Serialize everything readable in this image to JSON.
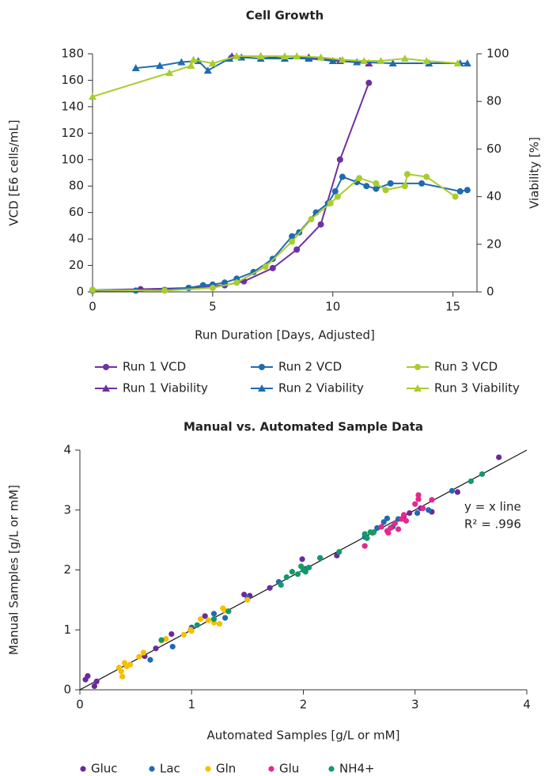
{
  "chart_data": [
    {
      "type": "line",
      "title": "Cell Growth",
      "x_label": "Run Duration [Days, Adjusted]",
      "y_label": "VCD [E6 cells/mL]",
      "y2_label": "Viability [%]",
      "xlim": [
        0,
        16
      ],
      "xticks": [
        0,
        5,
        10,
        15
      ],
      "ylim": [
        0,
        180
      ],
      "yticks": [
        0,
        20,
        40,
        60,
        80,
        100,
        120,
        140,
        160,
        180
      ],
      "y2lim": [
        0,
        100
      ],
      "y2ticks": [
        0,
        20,
        40,
        60,
        80,
        100
      ],
      "grid": false,
      "legend": "bottom",
      "series": [
        {
          "name": "Run 1 VCD",
          "color": "#7030a0",
          "marker": "circle",
          "x": [
            0,
            2,
            4,
            5.5,
            6.3,
            7.5,
            8.5,
            9.5,
            10.3,
            11.5
          ],
          "values": [
            1.5,
            2,
            3,
            5,
            8,
            18,
            32,
            51,
            100,
            158
          ]
        },
        {
          "name": "Run 2 VCD",
          "color": "#1f6bb0",
          "marker": "circle",
          "x": [
            0,
            1.8,
            3,
            4,
            4.6,
            5,
            5.5,
            6,
            6.7,
            7.5,
            8.3,
            8.6,
            9.3,
            9.8,
            10.1,
            10.4,
            11,
            11.4,
            11.8,
            12.4,
            13.7,
            15.3,
            15.6
          ],
          "values": [
            1,
            1,
            1.5,
            3,
            5,
            5.5,
            7,
            10,
            15,
            25,
            42,
            45,
            60,
            67,
            76,
            87,
            83,
            80,
            78,
            82,
            82,
            76,
            77
          ]
        },
        {
          "name": "Run 3 VCD",
          "color": "#a9cc2f",
          "marker": "circle",
          "x": [
            0,
            3,
            5,
            6,
            7.2,
            8.3,
            9.1,
            9.9,
            10.2,
            11.1,
            11.8,
            12.2,
            13,
            13.1,
            13.9,
            15.1
          ],
          "values": [
            1.5,
            1,
            3,
            7,
            19,
            38,
            55,
            67,
            72,
            86,
            82,
            77,
            80,
            89,
            87,
            72
          ]
        },
        {
          "name": "Run 1 Viability",
          "color": "#7030a0",
          "marker": "triangle",
          "axis": "y2",
          "x": [
            5.8,
            7,
            8,
            9,
            10.3,
            11.5
          ],
          "values": [
            99,
            99,
            98,
            98.5,
            97,
            96
          ]
        },
        {
          "name": "Run 2 Viability",
          "color": "#1f6bb0",
          "marker": "triangle",
          "axis": "y2",
          "x": [
            1.8,
            2.8,
            3.7,
            4.4,
            4.8,
            5.7,
            6.2,
            7,
            8,
            9,
            10,
            11,
            12.5,
            14,
            15.3,
            15.6
          ],
          "values": [
            94,
            95,
            96.5,
            97,
            93,
            98,
            98.5,
            98,
            98,
            98,
            97,
            96.5,
            96,
            96,
            96,
            96
          ]
        },
        {
          "name": "Run 3 Viability",
          "color": "#a9cc2f",
          "marker": "triangle",
          "axis": "y2",
          "x": [
            0,
            3.2,
            4.1,
            4.2,
            5,
            6,
            7,
            8,
            8.5,
            9.5,
            10.4,
            11.3,
            12,
            13,
            13.9,
            15.2
          ],
          "values": [
            82,
            92,
            95,
            97.5,
            96,
            99,
            99,
            99,
            99,
            98.5,
            97.5,
            97,
            97,
            98,
            97,
            96
          ]
        }
      ]
    },
    {
      "type": "scatter",
      "title": "Manual vs. Automated Sample Data",
      "x_label": "Automated Samples [g/L or mM]",
      "y_label": "Manual Samples [g/L or mM]",
      "xlim": [
        0,
        4
      ],
      "xticks": [
        0,
        1,
        2,
        3,
        4
      ],
      "ylim": [
        0,
        4
      ],
      "yticks": [
        0,
        1,
        2,
        3,
        4
      ],
      "grid": false,
      "legend": "bottom",
      "annotations": [
        "y = x line",
        "R² = .996"
      ],
      "series": [
        {
          "name": "Gluc",
          "color": "#6a2a9e",
          "x": [
            0.05,
            0.07,
            0.13,
            0.15,
            0.58,
            0.68,
            0.82,
            1.12,
            1.47,
            1.52,
            1.7,
            1.99,
            2.3,
            2.9,
            3.05,
            3.15,
            3.38,
            3.75,
            2.95
          ],
          "values": [
            0.17,
            0.23,
            0.06,
            0.14,
            0.56,
            0.69,
            0.93,
            1.23,
            1.59,
            1.57,
            1.7,
            2.18,
            2.24,
            2.9,
            3.03,
            2.97,
            3.3,
            3.88,
            2.95
          ]
        },
        {
          "name": "Lac",
          "color": "#1f6bb0",
          "x": [
            0.63,
            0.83,
            1.0,
            1.2,
            1.3,
            1.5,
            1.78,
            2.02,
            2.15,
            2.55,
            2.66,
            2.72,
            2.75,
            2.85,
            3.02,
            3.12,
            3.33,
            2.8
          ],
          "values": [
            0.5,
            0.72,
            1.04,
            1.27,
            1.2,
            1.52,
            1.8,
            2.02,
            2.2,
            2.55,
            2.7,
            2.8,
            2.86,
            2.85,
            2.95,
            3.0,
            3.32,
            2.72
          ]
        },
        {
          "name": "Gln",
          "color": "#f5c000",
          "x": [
            0.35,
            0.37,
            0.38,
            0.4,
            0.42,
            0.45,
            0.53,
            0.57,
            0.73,
            0.77,
            0.93,
            0.99,
            1.08,
            1.15,
            1.2,
            1.25,
            1.28,
            1.3,
            1.5,
            1.0
          ],
          "values": [
            0.37,
            0.31,
            0.22,
            0.45,
            0.39,
            0.42,
            0.55,
            0.62,
            0.82,
            0.85,
            0.92,
            1.0,
            1.18,
            1.16,
            1.12,
            1.1,
            1.36,
            1.32,
            1.5,
            0.98
          ]
        },
        {
          "name": "Glu",
          "color": "#e6288c",
          "x": [
            2.55,
            2.7,
            2.75,
            2.78,
            2.82,
            2.88,
            2.9,
            2.92,
            3.0,
            3.03,
            3.03,
            3.07,
            3.15,
            2.85,
            2.76,
            2.62
          ],
          "values": [
            2.4,
            2.72,
            2.65,
            2.7,
            2.78,
            2.85,
            2.92,
            2.82,
            3.1,
            3.25,
            3.18,
            3.03,
            3.17,
            2.68,
            2.62,
            2.62
          ]
        },
        {
          "name": "NH4+",
          "color": "#13996a",
          "x": [
            0.73,
            1.05,
            1.2,
            1.33,
            1.8,
            1.85,
            1.9,
            1.95,
            2.0,
            2.02,
            2.05,
            2.15,
            2.32,
            2.55,
            2.57,
            2.6,
            2.63,
            3.5,
            3.6,
            1.98
          ],
          "values": [
            0.83,
            1.08,
            1.18,
            1.31,
            1.75,
            1.88,
            1.97,
            1.93,
            2.0,
            1.97,
            2.04,
            2.2,
            2.3,
            2.6,
            2.53,
            2.63,
            2.63,
            3.48,
            3.6,
            2.06
          ]
        }
      ]
    }
  ]
}
